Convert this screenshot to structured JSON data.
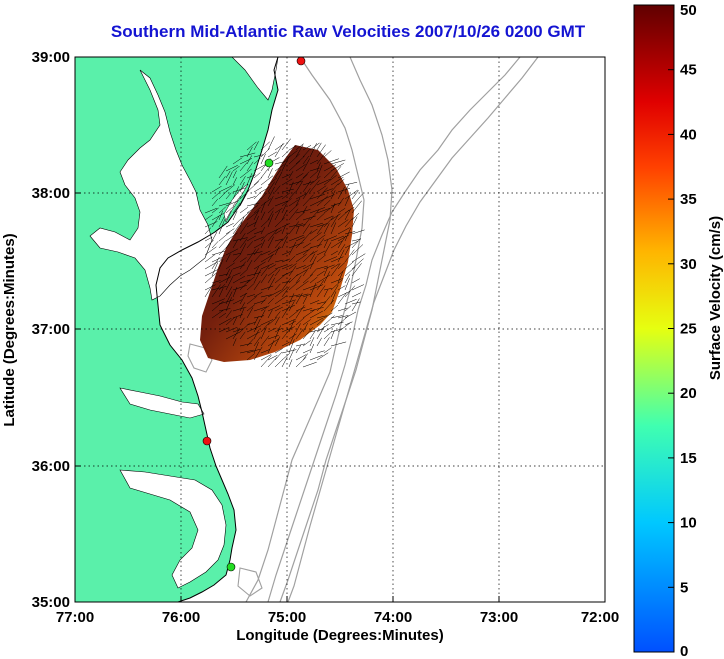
{
  "title": "Southern Mid-Atlantic Raw Velocities 2007/10/26 0200 GMT",
  "axes": {
    "xlabel": "Longitude (Degrees:Minutes)",
    "ylabel": "Latitude (Degrees:Minutes)",
    "xticks": [
      "77:00",
      "76:00",
      "75:00",
      "74:00",
      "73:00",
      "72:00"
    ],
    "yticks": [
      "39:00",
      "38:00",
      "37:00",
      "36:00",
      "35:00"
    ]
  },
  "colorbar": {
    "label": "Surface Velocity (cm/s)",
    "ticks": [
      "50",
      "45",
      "40",
      "35",
      "30",
      "25",
      "20",
      "15",
      "10",
      "5",
      "0"
    ],
    "range": [
      0,
      50
    ]
  },
  "colors": {
    "land": "#5af0aa",
    "water": "#ffffff",
    "title": "#1414d2",
    "bathymetry": "#a0a0a0",
    "station_green": "#22dd22",
    "station_red": "#ee1111"
  },
  "stations": [
    {
      "color": "red",
      "lon": -74.85,
      "lat": 38.97
    },
    {
      "color": "green",
      "lon": -75.17,
      "lat": 38.22
    },
    {
      "color": "red",
      "lon": -75.68,
      "lat": 36.19
    },
    {
      "color": "green",
      "lon": -75.48,
      "lat": 35.26
    }
  ]
}
